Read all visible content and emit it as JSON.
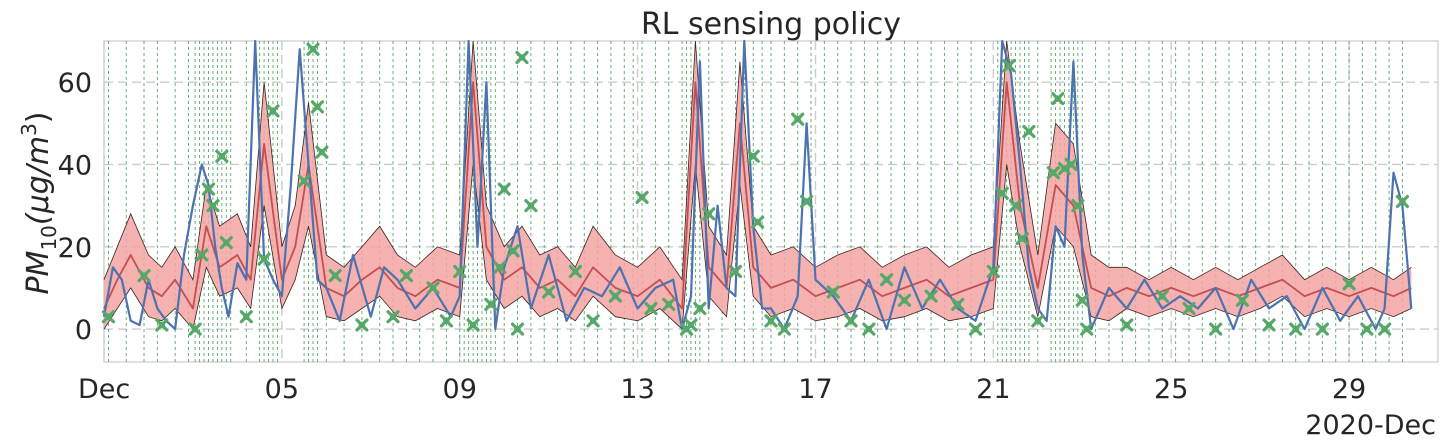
{
  "chart_data": {
    "type": "line",
    "title": "RL sensing policy",
    "ylabel_main": "PM",
    "ylabel_sub": "10",
    "ylabel_units": "(μg/m",
    "ylabel_sup": "3",
    "ylabel_close": ")",
    "xlabel_offset": "2020-Dec",
    "xlim": [
      1,
      31
    ],
    "ylim": [
      -8,
      70
    ],
    "yticks": [
      0,
      20,
      40,
      60
    ],
    "ytick_labels": [
      "0",
      "20",
      "40",
      "60"
    ],
    "xticks": [
      1,
      5,
      9,
      13,
      17,
      21,
      25,
      29
    ],
    "xtick_labels": [
      "Dec",
      "05",
      "09",
      "13",
      "17",
      "21",
      "25",
      "29"
    ],
    "grid": true,
    "colors": {
      "observed": "#4c72b0",
      "predicted": "#c44e52",
      "band_fill": "#f4a3a3",
      "band_edge": "#3a2222",
      "sensing": "#55a868",
      "marker": "#55a868"
    },
    "series": [
      {
        "role": "observed",
        "x": [
          1.0,
          1.2,
          1.4,
          1.6,
          1.8,
          2.0,
          2.2,
          2.4,
          2.6,
          2.8,
          3.0,
          3.2,
          3.35,
          3.5,
          3.65,
          3.8,
          4.0,
          4.2,
          4.4,
          4.6,
          4.8,
          5.0,
          5.2,
          5.4,
          5.6,
          5.8,
          6.0,
          6.3,
          6.6,
          7.0,
          7.3,
          7.6,
          8.0,
          8.4,
          8.8,
          9.0,
          9.2,
          9.4,
          9.6,
          9.8,
          10.0,
          10.3,
          10.6,
          11.0,
          11.4,
          11.8,
          12.2,
          12.6,
          13.0,
          13.4,
          13.8,
          14.0,
          14.2,
          14.4,
          14.6,
          14.8,
          15.0,
          15.2,
          15.4,
          15.6,
          15.8,
          16.0,
          16.3,
          16.6,
          16.8,
          17.0,
          17.4,
          17.8,
          18.2,
          18.6,
          19.0,
          19.4,
          19.8,
          20.2,
          20.6,
          21.0,
          21.2,
          21.4,
          21.6,
          21.8,
          22.0,
          22.2,
          22.4,
          22.6,
          22.8,
          23.0,
          23.2,
          23.6,
          24.0,
          24.4,
          24.8,
          25.2,
          25.6,
          26.0,
          26.4,
          26.8,
          27.2,
          27.6,
          28.0,
          28.4,
          28.8,
          29.2,
          29.6,
          29.8,
          30.0,
          30.2,
          30.4
        ],
        "y": [
          3,
          15,
          12,
          2,
          1,
          12,
          5,
          2,
          0,
          18,
          30,
          40,
          35,
          20,
          10,
          3,
          16,
          12,
          80,
          17,
          12,
          8,
          35,
          68,
          40,
          12,
          10,
          2,
          18,
          3,
          15,
          12,
          5,
          10,
          3,
          8,
          80,
          20,
          60,
          0,
          15,
          25,
          5,
          18,
          2,
          10,
          8,
          15,
          5,
          10,
          12,
          0,
          8,
          65,
          5,
          30,
          10,
          8,
          70,
          25,
          5,
          5,
          0,
          8,
          50,
          12,
          8,
          2,
          12,
          0,
          15,
          5,
          12,
          5,
          2,
          15,
          80,
          62,
          40,
          15,
          5,
          2,
          25,
          20,
          65,
          18,
          0,
          10,
          5,
          12,
          5,
          8,
          5,
          10,
          0,
          12,
          5,
          8,
          0,
          10,
          2,
          8,
          0,
          5,
          38,
          30,
          5
        ]
      },
      {
        "role": "predicted",
        "x": [
          1.0,
          1.3,
          1.6,
          2.0,
          2.3,
          2.6,
          3.0,
          3.3,
          3.6,
          4.0,
          4.3,
          4.6,
          5.0,
          5.3,
          5.6,
          6.0,
          6.4,
          6.8,
          7.2,
          7.6,
          8.0,
          8.5,
          9.0,
          9.3,
          9.6,
          10.0,
          10.4,
          10.8,
          11.2,
          11.6,
          12.0,
          12.5,
          13.0,
          13.5,
          14.0,
          14.3,
          14.6,
          15.0,
          15.3,
          15.6,
          16.0,
          16.5,
          17.0,
          17.5,
          18.0,
          18.5,
          19.0,
          19.5,
          20.0,
          20.5,
          21.0,
          21.3,
          21.6,
          22.0,
          22.4,
          22.8,
          23.2,
          23.6,
          24.0,
          24.5,
          25.0,
          25.5,
          26.0,
          26.5,
          27.0,
          27.5,
          28.0,
          28.5,
          29.0,
          29.5,
          30.0,
          30.4
        ],
        "y": [
          5,
          12,
          18,
          10,
          8,
          12,
          5,
          25,
          15,
          18,
          12,
          45,
          12,
          20,
          40,
          10,
          8,
          12,
          15,
          10,
          8,
          12,
          10,
          60,
          20,
          12,
          15,
          10,
          12,
          8,
          15,
          10,
          8,
          12,
          5,
          60,
          15,
          10,
          50,
          15,
          10,
          12,
          8,
          10,
          12,
          8,
          10,
          12,
          8,
          10,
          12,
          60,
          30,
          10,
          35,
          30,
          10,
          8,
          10,
          8,
          10,
          8,
          10,
          8,
          10,
          12,
          8,
          10,
          8,
          10,
          8,
          10
        ]
      }
    ],
    "band": {
      "x": [
        1.0,
        1.3,
        1.6,
        2.0,
        2.3,
        2.6,
        3.0,
        3.3,
        3.6,
        4.0,
        4.3,
        4.6,
        5.0,
        5.3,
        5.6,
        6.0,
        6.4,
        6.8,
        7.2,
        7.6,
        8.0,
        8.5,
        9.0,
        9.3,
        9.6,
        10.0,
        10.4,
        10.8,
        11.2,
        11.6,
        12.0,
        12.5,
        13.0,
        13.5,
        14.0,
        14.3,
        14.6,
        15.0,
        15.3,
        15.6,
        16.0,
        16.5,
        17.0,
        17.5,
        18.0,
        18.5,
        19.0,
        19.5,
        20.0,
        20.5,
        21.0,
        21.3,
        21.6,
        22.0,
        22.4,
        22.8,
        23.2,
        23.6,
        24.0,
        24.5,
        25.0,
        25.5,
        26.0,
        26.5,
        27.0,
        27.5,
        28.0,
        28.5,
        29.0,
        29.5,
        30.0,
        30.4
      ],
      "lower": [
        0,
        5,
        10,
        3,
        2,
        5,
        0,
        15,
        8,
        10,
        5,
        30,
        5,
        12,
        25,
        3,
        2,
        5,
        8,
        3,
        2,
        5,
        3,
        40,
        12,
        5,
        8,
        3,
        5,
        2,
        8,
        3,
        2,
        5,
        0,
        40,
        8,
        3,
        35,
        8,
        3,
        5,
        2,
        3,
        5,
        2,
        3,
        5,
        2,
        3,
        5,
        40,
        20,
        3,
        25,
        20,
        3,
        2,
        5,
        3,
        5,
        3,
        5,
        3,
        5,
        8,
        3,
        5,
        3,
        5,
        3,
        5
      ],
      "upper": [
        12,
        20,
        28,
        18,
        15,
        20,
        12,
        35,
        25,
        28,
        20,
        60,
        20,
        30,
        55,
        18,
        15,
        20,
        25,
        18,
        15,
        20,
        18,
        75,
        30,
        20,
        25,
        18,
        20,
        15,
        25,
        18,
        15,
        20,
        12,
        75,
        25,
        18,
        65,
        25,
        18,
        20,
        15,
        18,
        20,
        15,
        18,
        20,
        15,
        18,
        20,
        75,
        45,
        18,
        50,
        45,
        18,
        15,
        15,
        12,
        15,
        12,
        15,
        12,
        15,
        18,
        12,
        15,
        12,
        15,
        12,
        15
      ]
    },
    "sensing_times": [
      1.1,
      1.5,
      1.9,
      2.2,
      2.6,
      2.9,
      3.05,
      3.15,
      3.25,
      3.35,
      3.45,
      3.55,
      3.65,
      3.75,
      3.85,
      4.2,
      4.5,
      4.6,
      4.7,
      4.8,
      4.9,
      5.5,
      5.6,
      5.7,
      5.8,
      6.0,
      6.4,
      6.8,
      7.2,
      7.5,
      7.8,
      8.1,
      8.4,
      8.7,
      9.0,
      9.1,
      9.2,
      9.3,
      9.4,
      9.5,
      9.6,
      9.7,
      9.8,
      10.0,
      10.3,
      10.6,
      10.9,
      11.2,
      11.5,
      11.8,
      12.1,
      12.4,
      12.7,
      12.9,
      13.1,
      13.4,
      13.7,
      14.0,
      14.1,
      14.2,
      14.3,
      14.4,
      14.6,
      14.9,
      15.2,
      15.4,
      15.6,
      15.8,
      16.0,
      16.3,
      16.6,
      16.9,
      17.2,
      17.5,
      17.8,
      18.1,
      18.4,
      18.7,
      19.0,
      19.3,
      19.6,
      19.9,
      20.2,
      20.5,
      20.8,
      21.1,
      21.2,
      21.3,
      21.4,
      21.5,
      21.6,
      21.7,
      21.8,
      22.0,
      22.3,
      22.4,
      22.5,
      22.6,
      22.7,
      22.8,
      22.9,
      23.0,
      23.3,
      23.6,
      23.9,
      24.2,
      24.5,
      24.8,
      25.1,
      25.4,
      25.7,
      26.0,
      26.3,
      26.6,
      26.9,
      27.2,
      27.5,
      27.8,
      28.1,
      28.4,
      28.7,
      29.0,
      29.3,
      29.6,
      29.9,
      30.2
    ],
    "sensed_points": [
      {
        "x": 1.1,
        "y": 3
      },
      {
        "x": 1.9,
        "y": 13
      },
      {
        "x": 2.3,
        "y": 1
      },
      {
        "x": 3.05,
        "y": 0
      },
      {
        "x": 3.2,
        "y": 18
      },
      {
        "x": 3.35,
        "y": 34
      },
      {
        "x": 3.45,
        "y": 30
      },
      {
        "x": 3.65,
        "y": 42
      },
      {
        "x": 3.75,
        "y": 21
      },
      {
        "x": 4.2,
        "y": 3
      },
      {
        "x": 4.6,
        "y": 17
      },
      {
        "x": 4.8,
        "y": 53
      },
      {
        "x": 5.5,
        "y": 36
      },
      {
        "x": 5.7,
        "y": 68
      },
      {
        "x": 5.8,
        "y": 54
      },
      {
        "x": 5.9,
        "y": 43
      },
      {
        "x": 6.2,
        "y": 13
      },
      {
        "x": 6.8,
        "y": 1
      },
      {
        "x": 7.5,
        "y": 3
      },
      {
        "x": 7.8,
        "y": 13
      },
      {
        "x": 8.4,
        "y": 10
      },
      {
        "x": 8.7,
        "y": 2
      },
      {
        "x": 9.0,
        "y": 14
      },
      {
        "x": 9.3,
        "y": 1
      },
      {
        "x": 9.7,
        "y": 6
      },
      {
        "x": 9.9,
        "y": 15
      },
      {
        "x": 10.0,
        "y": 34
      },
      {
        "x": 10.2,
        "y": 19
      },
      {
        "x": 10.4,
        "y": 66
      },
      {
        "x": 10.6,
        "y": 30
      },
      {
        "x": 10.3,
        "y": 0
      },
      {
        "x": 11.0,
        "y": 9
      },
      {
        "x": 11.6,
        "y": 14
      },
      {
        "x": 12.0,
        "y": 2
      },
      {
        "x": 12.5,
        "y": 8
      },
      {
        "x": 13.1,
        "y": 32
      },
      {
        "x": 13.3,
        "y": 5
      },
      {
        "x": 13.7,
        "y": 6
      },
      {
        "x": 14.1,
        "y": 0
      },
      {
        "x": 14.2,
        "y": 1
      },
      {
        "x": 14.4,
        "y": 5
      },
      {
        "x": 14.6,
        "y": 28
      },
      {
        "x": 15.2,
        "y": 14
      },
      {
        "x": 15.6,
        "y": 42
      },
      {
        "x": 15.7,
        "y": 26
      },
      {
        "x": 16.0,
        "y": 2
      },
      {
        "x": 16.3,
        "y": 0
      },
      {
        "x": 16.6,
        "y": 51
      },
      {
        "x": 16.8,
        "y": 31
      },
      {
        "x": 17.4,
        "y": 9
      },
      {
        "x": 17.8,
        "y": 2
      },
      {
        "x": 18.2,
        "y": 0
      },
      {
        "x": 18.6,
        "y": 12
      },
      {
        "x": 19.0,
        "y": 7
      },
      {
        "x": 19.6,
        "y": 8
      },
      {
        "x": 20.2,
        "y": 6
      },
      {
        "x": 20.6,
        "y": 0
      },
      {
        "x": 21.0,
        "y": 14
      },
      {
        "x": 21.2,
        "y": 33
      },
      {
        "x": 21.35,
        "y": 64
      },
      {
        "x": 21.5,
        "y": 30
      },
      {
        "x": 21.65,
        "y": 22
      },
      {
        "x": 21.8,
        "y": 48
      },
      {
        "x": 22.0,
        "y": 2
      },
      {
        "x": 22.35,
        "y": 38
      },
      {
        "x": 22.45,
        "y": 56
      },
      {
        "x": 22.6,
        "y": 39
      },
      {
        "x": 22.75,
        "y": 40
      },
      {
        "x": 22.9,
        "y": 30
      },
      {
        "x": 23.0,
        "y": 7
      },
      {
        "x": 23.1,
        "y": 0
      },
      {
        "x": 24.0,
        "y": 1
      },
      {
        "x": 24.8,
        "y": 8
      },
      {
        "x": 25.4,
        "y": 5
      },
      {
        "x": 26.0,
        "y": 0
      },
      {
        "x": 26.6,
        "y": 7
      },
      {
        "x": 27.2,
        "y": 1
      },
      {
        "x": 27.8,
        "y": 0
      },
      {
        "x": 28.4,
        "y": 0
      },
      {
        "x": 29.0,
        "y": 11
      },
      {
        "x": 29.4,
        "y": 0
      },
      {
        "x": 29.8,
        "y": 0
      },
      {
        "x": 30.2,
        "y": 31
      }
    ]
  }
}
